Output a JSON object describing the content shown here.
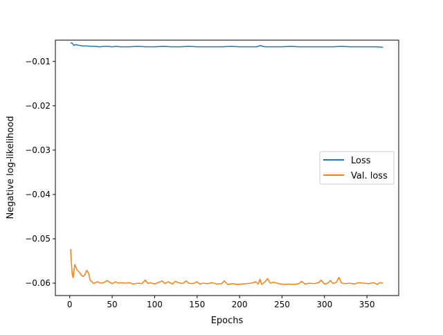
{
  "chart_data": {
    "type": "line",
    "xlabel": "Epochs",
    "ylabel": "Negative log-likelihood",
    "xlim": [
      -16.9,
      387.4
    ],
    "ylim": [
      -0.0628,
      -0.0052
    ],
    "xticks": [
      0,
      50,
      100,
      150,
      200,
      250,
      300,
      350
    ],
    "yticks": [
      -0.06,
      -0.05,
      -0.04,
      -0.03,
      -0.02,
      -0.01
    ],
    "ytick_labels": [
      "−0.06",
      "−0.05",
      "−0.04",
      "−0.03",
      "−0.02",
      "−0.01"
    ],
    "legend_position": "center-right",
    "series": [
      {
        "name": "Loss",
        "color": "#1f77b4",
        "x": [
          1,
          3,
          5,
          7,
          9,
          12,
          15,
          20,
          25,
          30,
          35,
          40,
          45,
          50,
          55,
          60,
          70,
          80,
          90,
          100,
          110,
          120,
          130,
          140,
          150,
          160,
          170,
          180,
          190,
          200,
          210,
          220,
          225,
          227,
          230,
          240,
          250,
          260,
          270,
          280,
          290,
          300,
          310,
          320,
          330,
          340,
          350,
          360,
          369
        ],
        "y": [
          -0.0058,
          -0.0059,
          -0.0064,
          -0.0062,
          -0.0063,
          -0.0064,
          -0.0065,
          -0.0065,
          -0.0066,
          -0.0066,
          -0.0067,
          -0.0066,
          -0.0066,
          -0.0067,
          -0.0066,
          -0.0067,
          -0.0067,
          -0.0066,
          -0.0067,
          -0.0067,
          -0.0066,
          -0.0067,
          -0.0067,
          -0.0066,
          -0.0067,
          -0.0067,
          -0.0067,
          -0.0067,
          -0.0066,
          -0.0067,
          -0.0067,
          -0.0067,
          -0.0064,
          -0.0066,
          -0.0067,
          -0.0067,
          -0.0067,
          -0.0066,
          -0.0067,
          -0.0067,
          -0.0067,
          -0.0067,
          -0.0067,
          -0.0066,
          -0.0067,
          -0.0067,
          -0.0067,
          -0.0067,
          -0.0068
        ]
      },
      {
        "name": "Val. loss",
        "color": "#ff7f0e",
        "x": [
          1,
          2,
          3,
          4,
          5,
          6,
          8,
          10,
          12,
          14,
          16,
          18,
          20,
          22,
          24,
          26,
          28,
          30,
          33,
          36,
          40,
          44,
          47,
          50,
          54,
          57,
          60,
          65,
          70,
          75,
          80,
          85,
          89,
          92,
          95,
          100,
          105,
          109,
          112,
          116,
          121,
          124,
          128,
          133,
          137,
          140,
          145,
          150,
          153,
          157,
          162,
          168,
          173,
          179,
          182,
          186,
          192,
          198,
          202,
          208,
          214,
          219,
          222,
          224,
          226,
          230,
          233,
          236,
          240,
          246,
          252,
          258,
          264,
          270,
          273,
          277,
          282,
          288,
          293,
          296,
          300,
          304,
          307,
          310,
          314,
          317,
          320,
          325,
          330,
          335,
          340,
          346,
          352,
          358,
          362,
          365,
          369
        ],
        "y": [
          -0.0523,
          -0.0555,
          -0.0581,
          -0.0588,
          -0.0573,
          -0.0558,
          -0.0568,
          -0.0573,
          -0.0577,
          -0.0583,
          -0.0585,
          -0.058,
          -0.0571,
          -0.0577,
          -0.0593,
          -0.0597,
          -0.0601,
          -0.0599,
          -0.0597,
          -0.06,
          -0.0599,
          -0.0594,
          -0.0598,
          -0.0601,
          -0.0597,
          -0.06,
          -0.0599,
          -0.06,
          -0.0599,
          -0.0602,
          -0.06,
          -0.0601,
          -0.0593,
          -0.0601,
          -0.0599,
          -0.0602,
          -0.0598,
          -0.0595,
          -0.0601,
          -0.0597,
          -0.0602,
          -0.0596,
          -0.0599,
          -0.0601,
          -0.0595,
          -0.06,
          -0.0601,
          -0.0597,
          -0.0602,
          -0.06,
          -0.0601,
          -0.0599,
          -0.0602,
          -0.0601,
          -0.0595,
          -0.0603,
          -0.0601,
          -0.0603,
          -0.0602,
          -0.0601,
          -0.06,
          -0.0597,
          -0.0602,
          -0.0591,
          -0.0603,
          -0.0597,
          -0.059,
          -0.06,
          -0.0598,
          -0.0601,
          -0.0603,
          -0.0602,
          -0.0603,
          -0.0601,
          -0.0596,
          -0.0602,
          -0.06,
          -0.0601,
          -0.0599,
          -0.0593,
          -0.0602,
          -0.06,
          -0.0594,
          -0.0601,
          -0.0598,
          -0.0587,
          -0.06,
          -0.0601,
          -0.06,
          -0.0602,
          -0.0599,
          -0.06,
          -0.0601,
          -0.0599,
          -0.0603,
          -0.0599,
          -0.06
        ]
      }
    ]
  }
}
